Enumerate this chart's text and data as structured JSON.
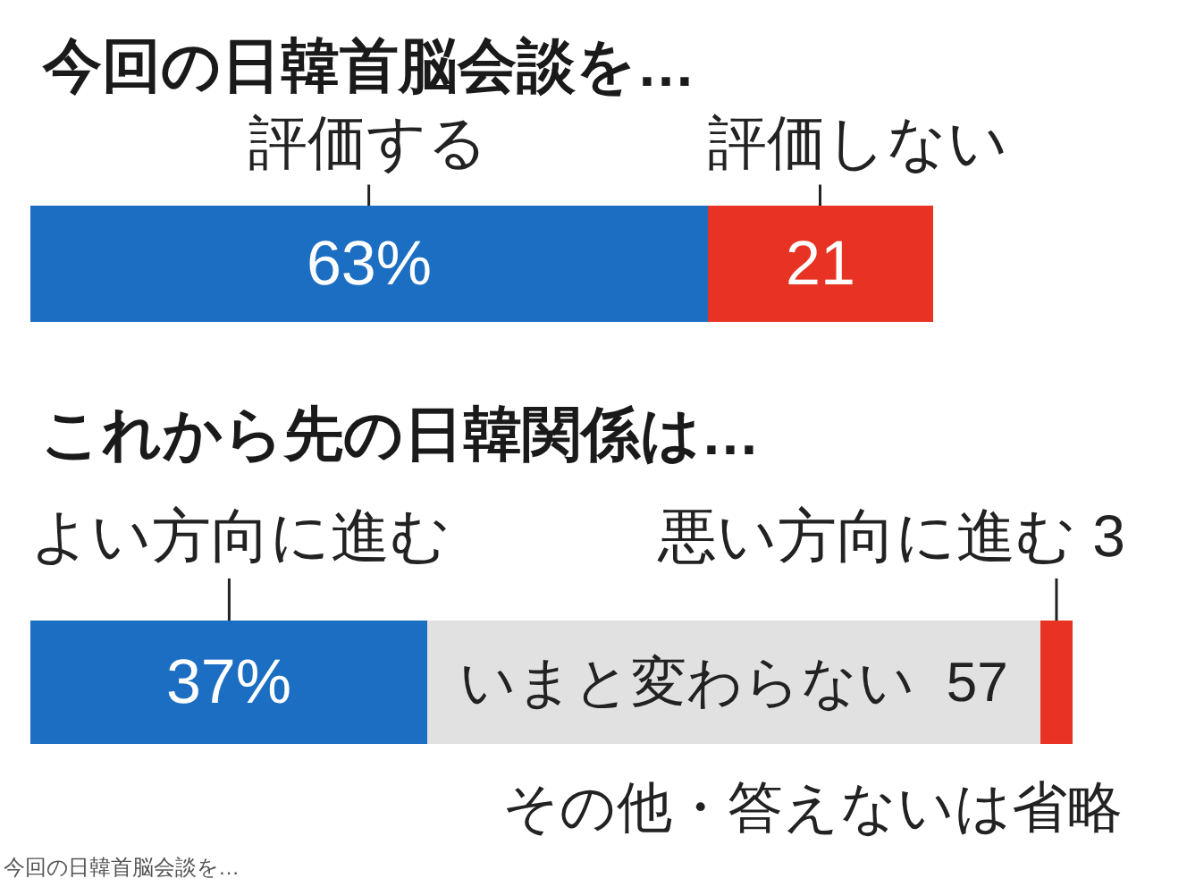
{
  "chart_data": [
    {
      "type": "bar",
      "orientation": "horizontal",
      "stacked": true,
      "title": "今回の日韓首脳会談を…",
      "categories": [
        null
      ],
      "series": [
        {
          "name": "評価する",
          "color": "#1b6ec2",
          "values": [
            63
          ],
          "value_labels": [
            "63%"
          ]
        },
        {
          "name": "評価しない",
          "color": "#e83223",
          "values": [
            21
          ],
          "value_labels": [
            "21"
          ]
        }
      ]
    },
    {
      "type": "bar",
      "orientation": "horizontal",
      "stacked": true,
      "title": "これから先の日韓関係は…",
      "categories": [
        null
      ],
      "series": [
        {
          "name": "よい方向に進む",
          "color": "#1b6ec2",
          "values": [
            37
          ],
          "value_labels": [
            "37%"
          ]
        },
        {
          "name": "いまと変わらない",
          "color": "#e1e1e1",
          "values": [
            57
          ],
          "value_labels": [
            "57"
          ]
        },
        {
          "name": "悪い方向に進む",
          "color": "#e83223",
          "values": [
            3
          ],
          "value_labels": [
            "3"
          ]
        }
      ],
      "annotations": [
        "その他・答えないは省略",
        "今回の日韓首脳会談を…"
      ]
    }
  ]
}
